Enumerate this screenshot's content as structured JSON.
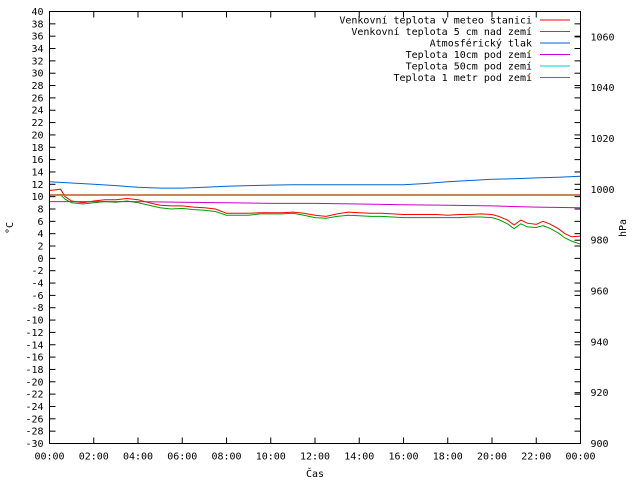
{
  "chart_data": {
    "type": "line",
    "xlabel": "Čas",
    "ylabel": "°C",
    "y2label": "hPa",
    "xlim": [
      0,
      24
    ],
    "ylim": [
      -30,
      40
    ],
    "y2lim": [
      900,
      1070
    ],
    "x_ticks": [
      "00:00",
      "02:00",
      "04:00",
      "06:00",
      "08:00",
      "10:00",
      "12:00",
      "14:00",
      "16:00",
      "18:00",
      "20:00",
      "22:00",
      "00:00"
    ],
    "y_ticks": [
      -30,
      -28,
      -26,
      -24,
      -22,
      -20,
      -18,
      -16,
      -14,
      -12,
      -10,
      -8,
      -6,
      -4,
      -2,
      0,
      2,
      4,
      6,
      8,
      10,
      12,
      14,
      16,
      18,
      20,
      22,
      24,
      26,
      28,
      30,
      32,
      34,
      36,
      38,
      40
    ],
    "y2_ticks": [
      900,
      920,
      940,
      960,
      980,
      1000,
      1020,
      1040,
      1060
    ],
    "legend_position": "top-right",
    "series": [
      {
        "name": "Venkovní teplota v meteo stanici",
        "color": "#ff0000",
        "axis": "y",
        "x": [
          0,
          0.5,
          0.7,
          1,
          1.5,
          2,
          2.5,
          3,
          3.5,
          4,
          4.5,
          5,
          5.5,
          6,
          6.5,
          7,
          7.5,
          8,
          8.5,
          9,
          9.5,
          10,
          10.5,
          11,
          11.5,
          12,
          12.5,
          13,
          13.5,
          14,
          14.5,
          15,
          15.5,
          16,
          16.5,
          17,
          17.5,
          18,
          18.5,
          19,
          19.5,
          20,
          20.3,
          20.7,
          21,
          21.3,
          21.6,
          22,
          22.3,
          22.6,
          23,
          23.3,
          23.6,
          24
        ],
        "y": [
          11,
          11.2,
          10,
          9.3,
          9.0,
          9.3,
          9.5,
          9.5,
          9.7,
          9.5,
          9.0,
          8.6,
          8.5,
          8.5,
          8.3,
          8.2,
          8.0,
          7.3,
          7.3,
          7.3,
          7.4,
          7.4,
          7.4,
          7.5,
          7.3,
          7.0,
          6.8,
          7.2,
          7.5,
          7.4,
          7.3,
          7.3,
          7.2,
          7.1,
          7.1,
          7.1,
          7.1,
          7.0,
          7.1,
          7.1,
          7.2,
          7.1,
          6.8,
          6.2,
          5.4,
          6.2,
          5.7,
          5.5,
          6.0,
          5.6,
          4.8,
          4.0,
          3.5,
          3.6
        ]
      },
      {
        "name": "Venkovní teplota 5 cm nad zemí",
        "color": "#00a000",
        "axis": "y",
        "x": [
          0,
          0.5,
          0.7,
          1,
          1.5,
          2,
          2.5,
          3,
          3.5,
          4,
          4.5,
          5,
          5.5,
          6,
          6.5,
          7,
          7.5,
          8,
          8.5,
          9,
          9.5,
          10,
          10.5,
          11,
          11.5,
          12,
          12.5,
          13,
          13.5,
          14,
          14.5,
          15,
          15.5,
          16,
          16.5,
          17,
          17.5,
          18,
          18.5,
          19,
          19.5,
          20,
          20.3,
          20.7,
          21,
          21.3,
          21.6,
          22,
          22.3,
          22.6,
          23,
          23.3,
          23.6,
          24
        ],
        "y": [
          10.2,
          10.3,
          9.6,
          9.0,
          8.8,
          9.0,
          9.2,
          9.1,
          9.3,
          9.0,
          8.6,
          8.2,
          8.0,
          8.1,
          7.9,
          7.8,
          7.6,
          7.0,
          7.0,
          7.0,
          7.2,
          7.2,
          7.2,
          7.3,
          7.0,
          6.6,
          6.5,
          6.8,
          7.0,
          6.9,
          6.8,
          6.8,
          6.7,
          6.6,
          6.6,
          6.6,
          6.6,
          6.6,
          6.6,
          6.7,
          6.7,
          6.6,
          6.3,
          5.6,
          4.8,
          5.6,
          5.1,
          5.0,
          5.3,
          4.9,
          4.1,
          3.3,
          2.8,
          2.3
        ]
      },
      {
        "name": "Atmosférický tlak",
        "color": "#0066cc",
        "axis": "y2",
        "x": [
          0,
          1,
          2,
          3,
          4,
          5,
          6,
          7,
          8,
          9,
          10,
          11,
          12,
          13,
          14,
          15,
          16,
          17,
          18,
          19,
          20,
          21,
          22,
          23,
          24
        ],
        "y": [
          1003.0,
          1002.5,
          1002.0,
          1001.5,
          1000.8,
          1000.5,
          1000.5,
          1000.8,
          1001.2,
          1001.5,
          1001.7,
          1001.8,
          1001.8,
          1001.8,
          1001.8,
          1001.8,
          1001.8,
          1002.3,
          1003.0,
          1003.5,
          1004.0,
          1004.2,
          1004.5,
          1004.8,
          1005.2
        ]
      },
      {
        "name": "Teplota 10cm pod zemí",
        "color": "#cc00cc",
        "axis": "y",
        "x": [
          0,
          2,
          4,
          6,
          8,
          10,
          12,
          14,
          16,
          18,
          20,
          22,
          24
        ],
        "y": [
          9.2,
          9.2,
          9.2,
          9.1,
          9.0,
          8.9,
          8.9,
          8.8,
          8.7,
          8.6,
          8.5,
          8.3,
          8.2
        ]
      },
      {
        "name": "Teplota 50cm pod zemí",
        "color": "#00cccc",
        "axis": "y",
        "x": [
          0,
          24
        ],
        "y": [
          10.2,
          10.2
        ]
      },
      {
        "name": "Teplota 1 metr pod zemí",
        "color": "#b05a20",
        "axis": "y",
        "x": [
          0,
          24
        ],
        "y": [
          10.3,
          10.3
        ]
      }
    ]
  }
}
